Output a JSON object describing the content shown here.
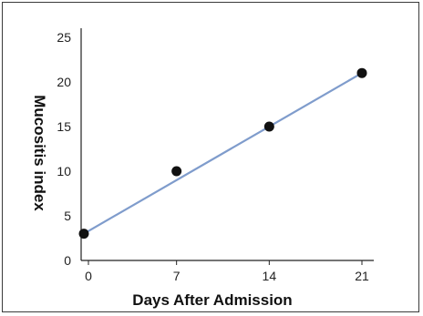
{
  "chart_data": {
    "type": "scatter",
    "xlabel": "Days After Admission",
    "ylabel": "Mucositis index",
    "xticks": [
      0,
      7,
      14,
      21
    ],
    "yticks": [
      0,
      5,
      10,
      15,
      20,
      25
    ],
    "xlim": [
      0,
      21
    ],
    "ylim": [
      0,
      25
    ],
    "grid": false,
    "series": [
      {
        "points": [
          {
            "x": 0,
            "y": 3
          },
          {
            "x": 7,
            "y": 10
          },
          {
            "x": 14,
            "y": 15
          },
          {
            "x": 21,
            "y": 21
          }
        ],
        "marker_color": "#111111"
      }
    ],
    "trend_line": {
      "x": [
        0,
        21
      ],
      "y": [
        3,
        21
      ],
      "color": "#7f9ccc"
    }
  }
}
